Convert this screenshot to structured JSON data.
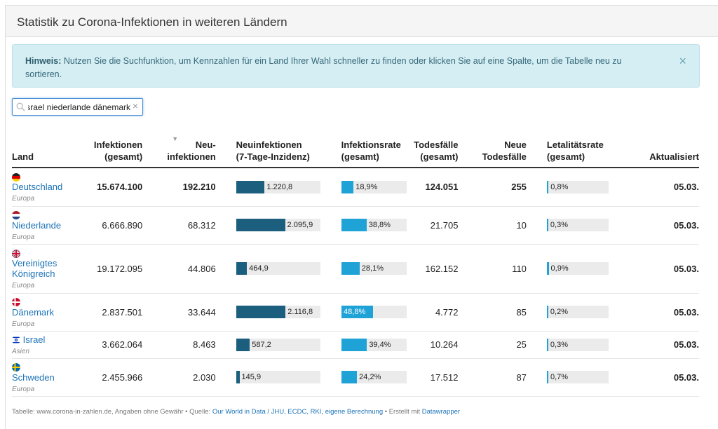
{
  "header": {
    "title": "Statistik zu Corona-Infektionen in weiteren Ländern"
  },
  "alert": {
    "label": "Hinweis:",
    "text": " Nutzen Sie die Suchfunktion, um Kennzahlen für ein Land Ihrer Wahl schneller zu finden oder klicken Sie auf eine Spalte, um die Tabelle neu zu sortieren.",
    "close": "×"
  },
  "search": {
    "value": "israel niederlande dänemark",
    "clear": "×"
  },
  "columns": {
    "land": "Land",
    "infektionen": [
      "Infektionen",
      "(gesamt)"
    ],
    "neu": [
      "Neu-",
      "infektionen"
    ],
    "inzidenz": [
      "Neuinfektionen",
      "(7-Tage-Inzidenz)"
    ],
    "rate": [
      "Infektionsrate",
      "(gesamt)"
    ],
    "tode": [
      "Todesfälle",
      "(gesamt)"
    ],
    "neuetode": [
      "Neue",
      "Todesfälle"
    ],
    "letal": [
      "Letalitätsrate",
      "(gesamt)"
    ],
    "aktualisiert": "Aktualisiert",
    "sort_icon": "▼"
  },
  "colors": {
    "dark": "#1b5e7e",
    "light": "#1fa3d6"
  },
  "rows": [
    {
      "flag": "de",
      "name": "Deutschland",
      "region": "Europa",
      "infektionen": "15.674.100",
      "neu": "192.210",
      "inzidenz": 1220.8,
      "inzidenz_label": "1.220,8",
      "rate": 18.9,
      "rate_label": "18,9%",
      "tode": "124.051",
      "neuetode": "255",
      "letal": 0.8,
      "letal_label": "0,8%",
      "aktualisiert": "05.03.",
      "bold": true
    },
    {
      "flag": "nl",
      "name": "Niederlande",
      "region": "Europa",
      "infektionen": "6.666.890",
      "neu": "68.312",
      "inzidenz": 2095.9,
      "inzidenz_label": "2.095,9",
      "rate": 38.8,
      "rate_label": "38,8%",
      "tode": "21.705",
      "neuetode": "10",
      "letal": 0.3,
      "letal_label": "0,3%",
      "aktualisiert": "05.03."
    },
    {
      "flag": "gb",
      "name": "Vereinigtes Königreich",
      "name_lines": [
        "Vereinigtes",
        "Königreich"
      ],
      "region": "Europa",
      "infektionen": "19.172.095",
      "neu": "44.806",
      "inzidenz": 464.9,
      "inzidenz_label": "464,9",
      "rate": 28.1,
      "rate_label": "28,1%",
      "tode": "162.152",
      "neuetode": "110",
      "letal": 0.9,
      "letal_label": "0,9%",
      "aktualisiert": "05.03."
    },
    {
      "flag": "dk",
      "name": "Dänemark",
      "region": "Europa",
      "infektionen": "2.837.501",
      "neu": "33.644",
      "inzidenz": 2116.8,
      "inzidenz_label": "2.116,8",
      "rate": 48.8,
      "rate_label": "48,8%",
      "tode": "4.772",
      "neuetode": "85",
      "letal": 0.2,
      "letal_label": "0,2%",
      "aktualisiert": "05.03."
    },
    {
      "flag": "il",
      "name": "Israel",
      "region": "Asien",
      "infektionen": "3.662.064",
      "neu": "8.463",
      "inzidenz": 587.2,
      "inzidenz_label": "587,2",
      "rate": 39.4,
      "rate_label": "39,4%",
      "tode": "10.264",
      "neuetode": "25",
      "letal": 0.3,
      "letal_label": "0,3%",
      "aktualisiert": "05.03."
    },
    {
      "flag": "se",
      "name": "Schweden",
      "region": "Europa",
      "infektionen": "2.455.966",
      "neu": "2.030",
      "inzidenz": 145.9,
      "inzidenz_label": "145,9",
      "rate": 24.2,
      "rate_label": "24,2%",
      "tode": "17.512",
      "neuetode": "87",
      "letal": 0.7,
      "letal_label": "0,7%",
      "aktualisiert": "05.03."
    }
  ],
  "scales": {
    "inzidenz_max": 3600,
    "rate_max": 100,
    "letal_max": 30
  },
  "footer": {
    "prefix": "Tabelle: www.corona-in-zahlen.de, Angaben ohne Gewähr • Quelle: ",
    "source_link": "Our World in Data / JHU, ECDC, RKI, eigene Berechnung",
    "middle": " • Erstellt mit ",
    "tool_link": "Datawrapper"
  }
}
